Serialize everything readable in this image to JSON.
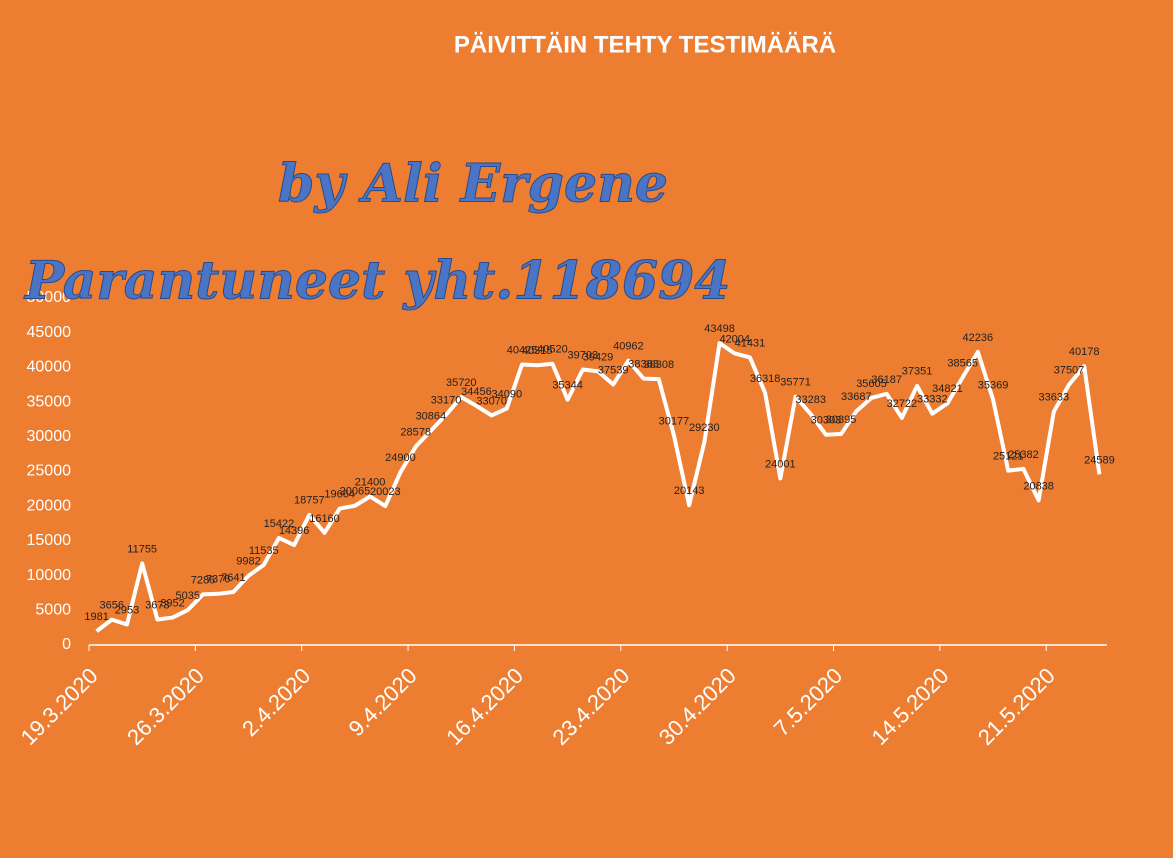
{
  "chart_data": {
    "type": "line",
    "title": "PÄIVITTÄIN TEHTY TESTIMÄÄRÄ",
    "annotations": [
      "by Ali Ergene",
      "Parantuneet yht.118694"
    ],
    "categories": [
      "19.3.2020",
      null,
      null,
      null,
      null,
      null,
      null,
      "26.3.2020",
      null,
      null,
      null,
      null,
      null,
      null,
      "2.4.2020",
      null,
      null,
      null,
      null,
      null,
      null,
      "9.4.2020",
      null,
      null,
      null,
      null,
      null,
      null,
      "16.4.2020",
      null,
      null,
      null,
      null,
      null,
      null,
      "23.4.2020",
      null,
      null,
      null,
      null,
      null,
      null,
      "30.4.2020",
      null,
      null,
      null,
      null,
      null,
      null,
      "7.5.2020",
      null,
      null,
      null,
      null,
      null,
      null,
      "14.5.2020",
      null,
      null,
      null,
      null,
      null,
      null,
      "21.5.2020",
      null,
      null,
      null
    ],
    "values": [
      1981,
      3656,
      2953,
      11755,
      3673,
      3952,
      5035,
      7286,
      7376,
      7641,
      9982,
      11535,
      15422,
      14396,
      18757,
      16160,
      19664,
      20065,
      21400,
      20023,
      24900,
      28578,
      30864,
      33170,
      35720,
      34456,
      33070,
      34090,
      40425,
      40315,
      40520,
      35344,
      39703,
      39429,
      37539,
      40962,
      38383,
      38308,
      30177,
      20143,
      29230,
      43498,
      42004,
      41431,
      36318,
      24001,
      35771,
      33283,
      30303,
      30395,
      33687,
      35605,
      36187,
      32722,
      37351,
      33332,
      34821,
      38565,
      42236,
      35369,
      25121,
      25382,
      20838,
      33633,
      37507,
      40178,
      24589
    ],
    "color": "#ffffff",
    "ylim": [
      0,
      50000
    ],
    "yticks": [
      0,
      5000,
      10000,
      15000,
      20000,
      25000,
      30000,
      35000,
      40000,
      45000,
      50000
    ],
    "data_labels": true
  }
}
